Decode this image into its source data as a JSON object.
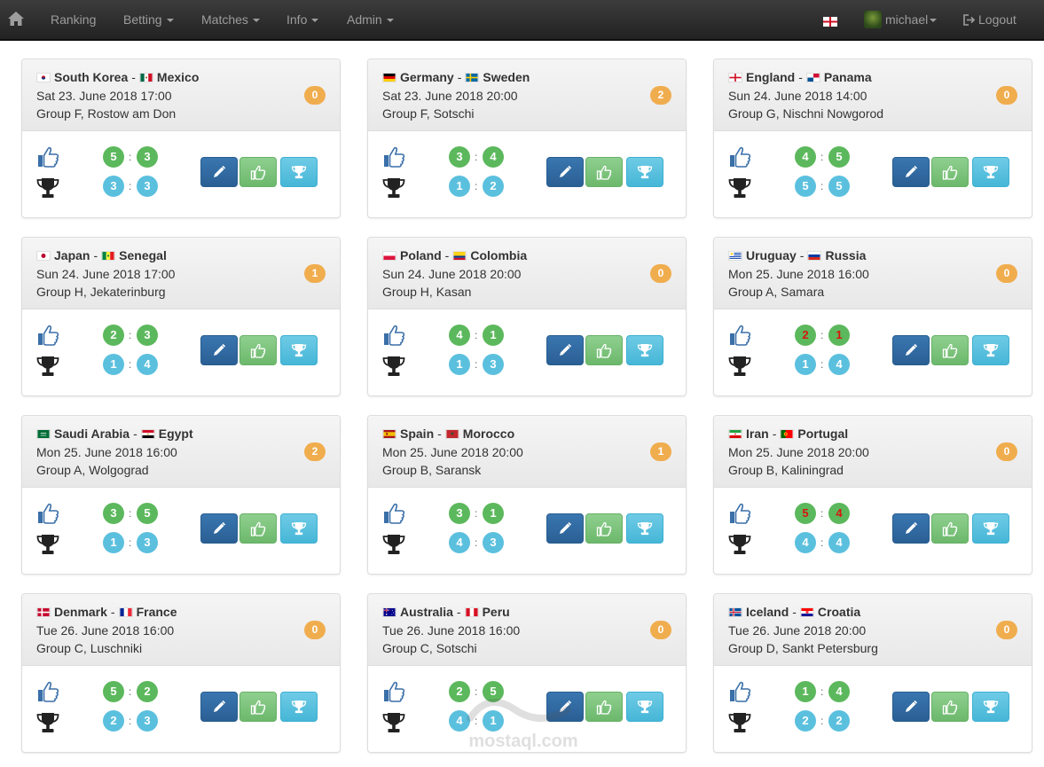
{
  "nav": {
    "items": [
      {
        "label": "Ranking",
        "dropdown": false
      },
      {
        "label": "Betting",
        "dropdown": true
      },
      {
        "label": "Matches",
        "dropdown": true
      },
      {
        "label": "Info",
        "dropdown": true
      },
      {
        "label": "Admin",
        "dropdown": true
      }
    ],
    "user": "michael",
    "logout": "Logout",
    "language_flag": "england-flag"
  },
  "colors": {
    "navbar": "#222222",
    "badge": "#f0ad4e",
    "score_green": "#5cb85c",
    "score_blue": "#5bc0de",
    "edit_btn": "#2a5f94",
    "like_btn": "#6cb86c",
    "trophy_btn": "#46b6d7"
  },
  "matches": [
    {
      "team1": "South Korea",
      "flag1": "kor",
      "team2": "Mexico",
      "flag2": "mex",
      "date": "Sat 23. June 2018 17:00",
      "venue": "Group F, Rostow am Don",
      "points": "0",
      "tip": [
        "5",
        "3"
      ],
      "result": [
        "3",
        "3"
      ],
      "tip_red": false
    },
    {
      "team1": "Germany",
      "flag1": "ger",
      "team2": "Sweden",
      "flag2": "swe",
      "date": "Sat 23. June 2018 20:00",
      "venue": "Group F, Sotschi",
      "points": "2",
      "tip": [
        "3",
        "4"
      ],
      "result": [
        "1",
        "2"
      ],
      "tip_red": false
    },
    {
      "team1": "England",
      "flag1": "eng",
      "team2": "Panama",
      "flag2": "pan",
      "date": "Sun 24. June 2018 14:00",
      "venue": "Group G, Nischni Nowgorod",
      "points": "0",
      "tip": [
        "4",
        "5"
      ],
      "result": [
        "5",
        "5"
      ],
      "tip_red": false
    },
    {
      "team1": "Japan",
      "flag1": "jpn",
      "team2": "Senegal",
      "flag2": "sen",
      "date": "Sun 24. June 2018 17:00",
      "venue": "Group H, Jekaterinburg",
      "points": "1",
      "tip": [
        "2",
        "3"
      ],
      "result": [
        "1",
        "4"
      ],
      "tip_red": false
    },
    {
      "team1": "Poland",
      "flag1": "pol",
      "team2": "Colombia",
      "flag2": "col",
      "date": "Sun 24. June 2018 20:00",
      "venue": "Group H, Kasan",
      "points": "0",
      "tip": [
        "4",
        "1"
      ],
      "result": [
        "1",
        "3"
      ],
      "tip_red": false
    },
    {
      "team1": "Uruguay",
      "flag1": "uru",
      "team2": "Russia",
      "flag2": "rus",
      "date": "Mon 25. June 2018 16:00",
      "venue": "Group A, Samara",
      "points": "0",
      "tip": [
        "2",
        "1"
      ],
      "result": [
        "1",
        "4"
      ],
      "tip_red": true
    },
    {
      "team1": "Saudi Arabia",
      "flag1": "ksa",
      "team2": "Egypt",
      "flag2": "egy",
      "date": "Mon 25. June 2018 16:00",
      "venue": "Group A, Wolgograd",
      "points": "2",
      "tip": [
        "3",
        "5"
      ],
      "result": [
        "1",
        "3"
      ],
      "tip_red": false
    },
    {
      "team1": "Spain",
      "flag1": "esp",
      "team2": "Morocco",
      "flag2": "mar",
      "date": "Mon 25. June 2018 20:00",
      "venue": "Group B, Saransk",
      "points": "1",
      "tip": [
        "3",
        "1"
      ],
      "result": [
        "4",
        "3"
      ],
      "tip_red": false
    },
    {
      "team1": "Iran",
      "flag1": "irn",
      "team2": "Portugal",
      "flag2": "por",
      "date": "Mon 25. June 2018 20:00",
      "venue": "Group B, Kaliningrad",
      "points": "0",
      "tip": [
        "5",
        "4"
      ],
      "result": [
        "4",
        "4"
      ],
      "tip_red": true
    },
    {
      "team1": "Denmark",
      "flag1": "den",
      "team2": "France",
      "flag2": "fra",
      "date": "Tue 26. June 2018 16:00",
      "venue": "Group C, Luschniki",
      "points": "0",
      "tip": [
        "5",
        "2"
      ],
      "result": [
        "2",
        "3"
      ],
      "tip_red": false
    },
    {
      "team1": "Australia",
      "flag1": "aus",
      "team2": "Peru",
      "flag2": "per",
      "date": "Tue 26. June 2018 16:00",
      "venue": "Group C, Sotschi",
      "points": "0",
      "tip": [
        "2",
        "5"
      ],
      "result": [
        "4",
        "1"
      ],
      "tip_red": false
    },
    {
      "team1": "Iceland",
      "flag1": "isl",
      "team2": "Croatia",
      "flag2": "cro",
      "date": "Tue 26. June 2018 20:00",
      "venue": "Group D, Sankt Petersburg",
      "points": "0",
      "tip": [
        "1",
        "4"
      ],
      "result": [
        "2",
        "2"
      ],
      "tip_red": false
    }
  ],
  "watermark": "mostaql.com"
}
